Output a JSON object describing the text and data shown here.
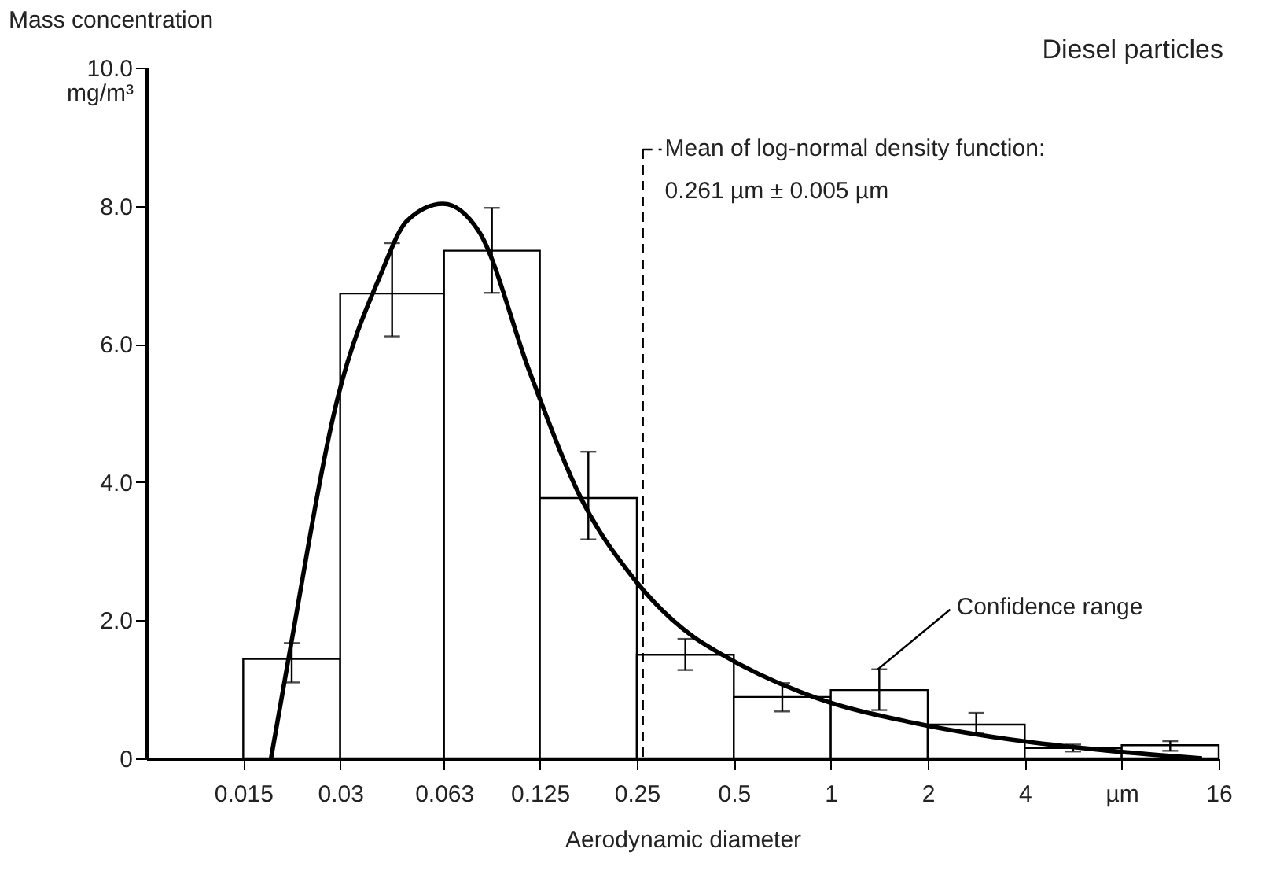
{
  "chart_data": {
    "type": "histogram",
    "title": "Diesel particles",
    "xlabel": "Aerodynamic diameter",
    "ylabel": "Mass concentration",
    "bins": [
      0.015,
      0.03,
      0.063,
      0.125,
      0.25,
      0.5,
      1,
      2,
      4,
      8,
      16
    ],
    "values": [
      1.44,
      6.73,
      7.35,
      3.77,
      1.5,
      0.89,
      0.99,
      0.49,
      0.15,
      0.19
    ],
    "errors": [
      [
        1.1,
        1.67
      ],
      [
        6.11,
        7.46
      ],
      [
        6.74,
        7.97
      ],
      [
        3.17,
        4.44
      ],
      [
        1.28,
        1.73
      ],
      [
        0.68,
        1.09
      ],
      [
        0.7,
        1.29
      ],
      [
        0.36,
        0.66
      ],
      [
        0.1,
        0.2
      ],
      [
        0.11,
        0.25
      ]
    ],
    "color": "#ffffff",
    "series": [
      {
        "type": "line",
        "color": "#000000",
        "x": [
          0.0183,
          0.0208,
          0.0294,
          0.0402,
          0.0483,
          0.0625,
          0.0808,
          0.1165,
          0.168,
          0.243,
          0.377,
          0.453,
          0.909,
          1.83,
          3.66,
          7.35,
          14.2
        ],
        "values": [
          0,
          1.48,
          5.2,
          7.02,
          7.78,
          8.03,
          7.63,
          5.58,
          3.76,
          2.62,
          1.75,
          1.52,
          0.87,
          0.51,
          0.27,
          0.11,
          0
        ]
      }
    ],
    "log": "x",
    "xlim": [
      0.0075,
      16
    ],
    "xticks": [
      0.015,
      0.03,
      0.063,
      0.125,
      0.25,
      0.5,
      1,
      2,
      4,
      {
        "value": 8,
        "label": "µm"
      },
      16
    ],
    "ylim": [
      0,
      10
    ],
    "yticks": [
      0,
      {
        "value": 2,
        "label": "2.0"
      },
      {
        "value": 4,
        "label": "4.0"
      },
      {
        "value": 6,
        "label": "6.0"
      },
      {
        "value": 8,
        "label": "8.0"
      },
      {
        "value": 10,
        "label": "10.0"
      }
    ],
    "ref_lines": [
      {
        "axis": "x",
        "value": 0.261,
        "label": "Mean of log-normal density function:\n0.261 µm ± 0.005 µm",
        "line_style": "dashed",
        "color": "#000000"
      }
    ],
    "annotations": [
      "mg/m³",
      {
        "text": "Confidence range",
        "x": 1.4,
        "y": 1.29
      }
    ],
    "grid": false
  }
}
